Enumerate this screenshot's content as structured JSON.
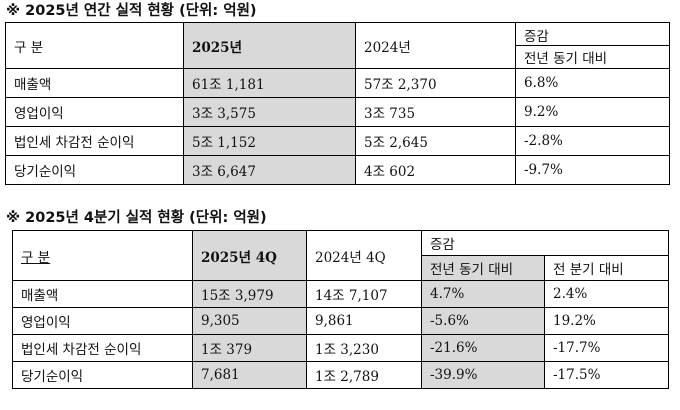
{
  "annual": {
    "title": "※ 2025년 연간 실적 현황 (단위: 억원)",
    "header": {
      "category": "구 분",
      "y2025": "2025년",
      "y2024": "2024년",
      "change_group": "증감",
      "yoy": "전년 동기 대비"
    },
    "rows": [
      [
        "매출액",
        "61조 1,181",
        "57조 2,370",
        "6.8%"
      ],
      [
        "영업이익",
        "3조 3,575",
        "3조 735",
        "9.2%"
      ],
      [
        "법인세 차감전 순이익",
        "5조 1,152",
        "5조 2,645",
        "-2.8%"
      ],
      [
        "당기순이익",
        "3조 6,647",
        "4조 602",
        "-9.7%"
      ]
    ]
  },
  "quarter": {
    "title": "※ 2025년 4분기 실적 현황 (단위: 억원)",
    "header": {
      "category": "구 분",
      "q2025": "2025년 4Q",
      "q2024": "2024년 4Q",
      "change_group": "증감",
      "yoy": "전년 동기 대비",
      "qoq": "전 분기 대비"
    },
    "rows": [
      [
        "매출액",
        "15조 3,979",
        "14조 7,107",
        "4.7%",
        "2.4%"
      ],
      [
        "영업이익",
        "9,305",
        "9,861",
        "-5.6%",
        "19.2%"
      ],
      [
        "법인세 차감전 순이익",
        "1조 379",
        "1조 3,230",
        "-21.6%",
        "-17.7%"
      ],
      [
        "당기순이익",
        "7,681",
        "1조 2,789",
        "-39.9%",
        "-17.5%"
      ]
    ]
  },
  "colors": {
    "shade": "#d9d9d9",
    "border": "#000000"
  }
}
